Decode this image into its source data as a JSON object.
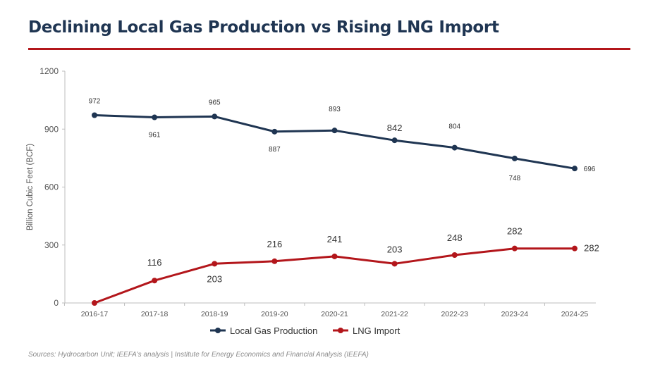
{
  "header": {
    "title": "Declining Local Gas Production vs Rising LNG Import"
  },
  "footer": {
    "source": "Sources: Hydrocarbon Unit; IEEFA's analysis  |  Institute for Energy Economics and Financial Analysis (IEEFA)"
  },
  "colors": {
    "title": "#1f3552",
    "rule": "#b3161b",
    "local_gas": "#1f3552",
    "lng": "#b3161b"
  },
  "chart_data": {
    "type": "line",
    "ylabel": "Billion Cubic Feet (BCF)",
    "ylim": [
      0,
      1200
    ],
    "yticks": [
      0,
      300,
      600,
      900,
      1200
    ],
    "grid": false,
    "legend": "bottom-center",
    "categories": [
      "2016-17",
      "2017-18",
      "2018-19",
      "2019-20",
      "2020-21",
      "2021-22",
      "2022-23",
      "2023-24",
      "2024-25"
    ],
    "series": [
      {
        "name": "Local Gas Production",
        "color": "#1f3552",
        "values": [
          972,
          961,
          965,
          887,
          893,
          842,
          804,
          748,
          696
        ],
        "labels": [
          "972",
          "961",
          "965",
          "887",
          "893",
          "842",
          "804",
          "748",
          "696"
        ]
      },
      {
        "name": "LNG Import",
        "color": "#b3161b",
        "values": [
          0,
          116,
          203,
          216,
          241,
          203,
          248,
          282,
          282
        ],
        "labels": [
          "",
          "116",
          "203",
          "216",
          "241",
          "203",
          "248",
          "282",
          "282"
        ]
      }
    ]
  }
}
